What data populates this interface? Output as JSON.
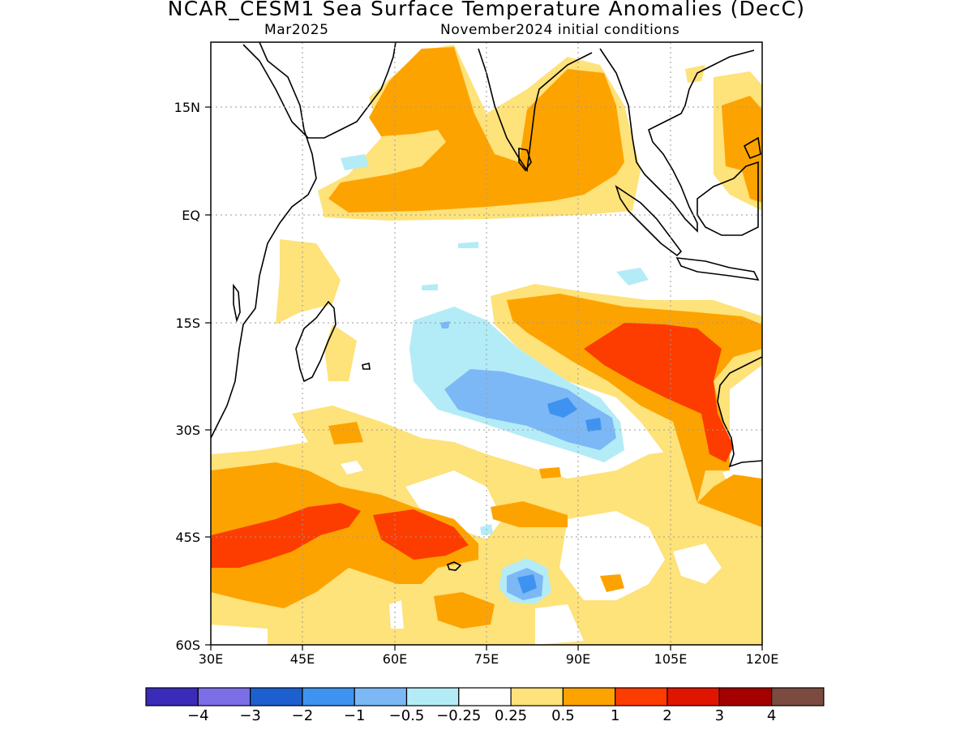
{
  "title": "NCAR_CESM1 Sea Surface Temperature Anomalies (DecC)",
  "subtitle_left": "Mar2025",
  "subtitle_right": "November2024 initial conditions",
  "axes": {
    "lon_range": [
      30,
      120
    ],
    "lat_range": [
      -60,
      25
    ],
    "x_ticks": [
      "30E",
      "45E",
      "60E",
      "75E",
      "90E",
      "105E",
      "120E"
    ],
    "y_ticks": [
      "15N",
      "EQ",
      "15S",
      "30S",
      "45S",
      "60S"
    ],
    "grid": "dotted"
  },
  "colorbar": {
    "colors": [
      "#3a2bb8",
      "#7b6ee6",
      "#1e5fd0",
      "#3f93f0",
      "#7cb8f6",
      "#b3ecf6",
      "#ffffff",
      "#fee27a",
      "#fda300",
      "#fd3c00",
      "#e01500",
      "#a50000",
      "#7a4b3e"
    ],
    "labels": [
      "−4",
      "−3",
      "−2",
      "−1",
      "−0.5",
      "−0.25",
      "0.25",
      "0.5",
      "1",
      "2",
      "3",
      "4"
    ]
  },
  "legend_colors": {
    "neg_strong": "#3f93f0",
    "neg_mid": "#7cb8f6",
    "neg_weak": "#b3ecf6",
    "pos_weak": "#fee27a",
    "pos_mid": "#fda300",
    "pos_strong": "#fd3c00"
  }
}
